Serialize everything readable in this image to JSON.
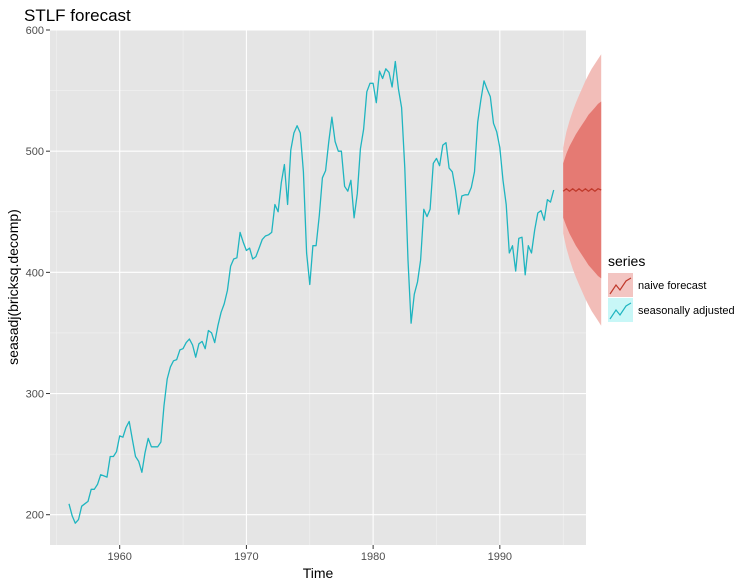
{
  "chart_data": {
    "type": "line",
    "title": "STLF forecast",
    "xlabel": "Time",
    "ylabel": "seasadj(bricksq.decomp)",
    "xlim": [
      1954.5,
      1996.8
    ],
    "ylim": [
      175,
      600
    ],
    "x_ticks": [
      1960,
      1970,
      1980,
      1990
    ],
    "x_tick_labels": [
      "1960",
      "1970",
      "1980",
      "1990"
    ],
    "y_ticks": [
      200,
      300,
      400,
      500,
      600
    ],
    "y_tick_labels": [
      "200",
      "300",
      "400",
      "500",
      "600"
    ],
    "grid": true,
    "legend": {
      "title": "series",
      "position": "right",
      "entries": [
        {
          "label": "naive forecast",
          "color": "#c0392b",
          "fill": "#f3c5c2"
        },
        {
          "label": "seasonally adjusted",
          "color": "#1fb5c0",
          "fill": "#c8f7f7"
        }
      ]
    },
    "series": [
      {
        "name": "seasonally adjusted",
        "color": "#1fb5c0",
        "x_start": 1956.0,
        "x_step": 0.25,
        "values": [
          209,
          199,
          193,
          196,
          207,
          209,
          211,
          221,
          221,
          225,
          233,
          232,
          231,
          248,
          248,
          252,
          265,
          264,
          272,
          277,
          262,
          248,
          244,
          235,
          251,
          263,
          256,
          256,
          256,
          260,
          290,
          312,
          322,
          327,
          328,
          336,
          337,
          342,
          345,
          340,
          330,
          341,
          343,
          337,
          352,
          350,
          342,
          356,
          367,
          374,
          385,
          405,
          411,
          412,
          433,
          425,
          418,
          420,
          411,
          413,
          420,
          427,
          430,
          431,
          433,
          456,
          450,
          474,
          489,
          456,
          501,
          515,
          521,
          515,
          483,
          416,
          390,
          422,
          422,
          447,
          478,
          484,
          508,
          528,
          508,
          500,
          500,
          471,
          467,
          476,
          445,
          465,
          502,
          518,
          549,
          556,
          556,
          540,
          566,
          560,
          568,
          565,
          553,
          574,
          551,
          536,
          486,
          410,
          358,
          382,
          392,
          410,
          452,
          446,
          452,
          490,
          494,
          488,
          505,
          507,
          486,
          483,
          468,
          448,
          463,
          464,
          464,
          470,
          483,
          524,
          542,
          558,
          551,
          545,
          523,
          516,
          503,
          476,
          456,
          416,
          422,
          401,
          428,
          429,
          398,
          422,
          416,
          435,
          449,
          451,
          443,
          460,
          458,
          468
        ]
      },
      {
        "name": "naive forecast",
        "color": "#c0392b",
        "x_start": 1995.0,
        "x_step": 0.25,
        "values": [
          467,
          469,
          467,
          469,
          467,
          469,
          467,
          469,
          467,
          469,
          467,
          469,
          468
        ],
        "pi80_lower": [
          445,
          438,
          432,
          427,
          422,
          418,
          414,
          410,
          406,
          403,
          400,
          397,
          395
        ],
        "pi80_upper": [
          490,
          498,
          504,
          509,
          514,
          518,
          522,
          526,
          530,
          533,
          536,
          539,
          541
        ],
        "pi95_lower": [
          432,
          420,
          411,
          403,
          396,
          390,
          384,
          378,
          373,
          368,
          364,
          360,
          356
        ],
        "pi95_upper": [
          503,
          516,
          525,
          533,
          540,
          546,
          552,
          558,
          563,
          568,
          572,
          576,
          580
        ]
      }
    ]
  }
}
